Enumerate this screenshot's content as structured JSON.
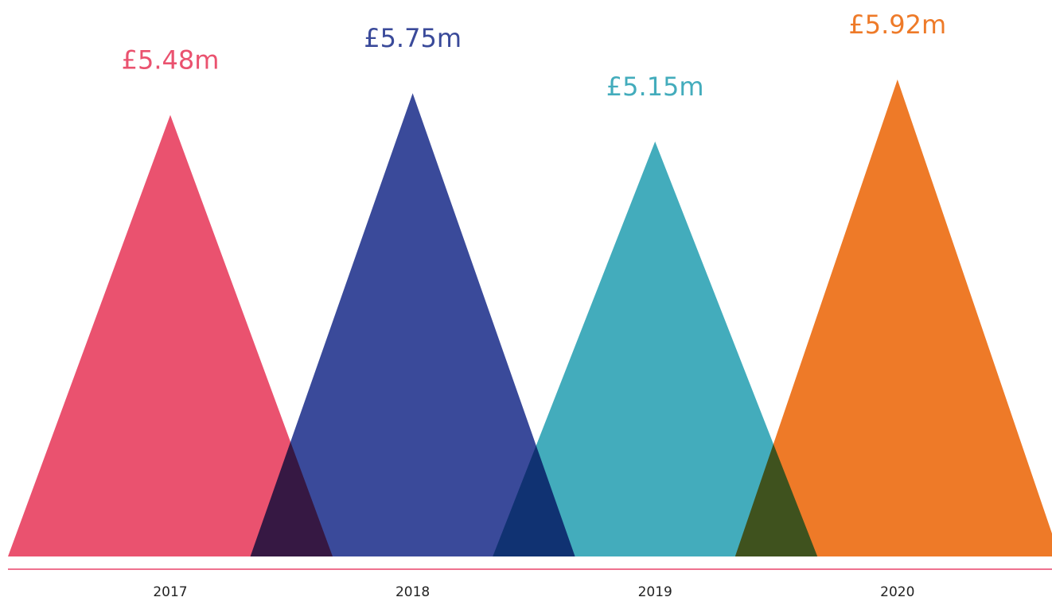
{
  "chart_data": {
    "type": "triangle-bar",
    "categories": [
      "2017",
      "2018",
      "2019",
      "2020"
    ],
    "values": [
      5.48,
      5.75,
      5.15,
      5.92
    ],
    "value_labels": [
      "£5.48m",
      "£5.75m",
      "£5.15m",
      "£5.92m"
    ],
    "colors": [
      "#ea526f",
      "#3a4a9a",
      "#43acbc",
      "#ee7a28"
    ]
  }
}
